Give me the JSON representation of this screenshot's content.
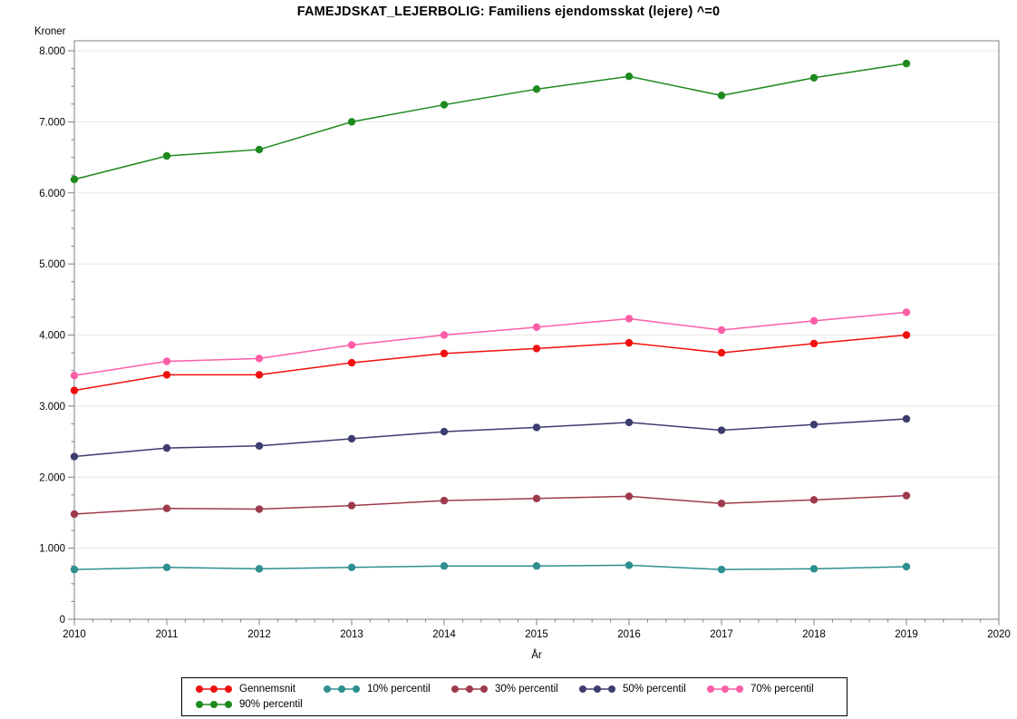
{
  "chart_data": {
    "type": "line",
    "title": "FAMEJDSKAT_LEJERBOLIG: Familiens ejendomsskat (lejere) ^=0",
    "ylabel": "Kroner",
    "xlabel": "År",
    "x": [
      2010,
      2011,
      2012,
      2013,
      2014,
      2015,
      2016,
      2017,
      2018,
      2019
    ],
    "xlim": [
      2010,
      2020
    ],
    "ylim": [
      0,
      8000
    ],
    "grid": "horizontal-only",
    "legend_position": "bottom",
    "ytick_labels": [
      "0",
      "1.000",
      "2.000",
      "3.000",
      "4.000",
      "5.000",
      "6.000",
      "7.000",
      "8.000"
    ],
    "xtick_labels": [
      "2010",
      "2011",
      "2012",
      "2013",
      "2014",
      "2015",
      "2016",
      "2017",
      "2018",
      "2019",
      "2020"
    ],
    "y_minor_tick_interval": 250,
    "x_minor_tick_interval": 0.2,
    "series": [
      {
        "name": "Gennemsnit",
        "color": "#f00f0f",
        "values": [
          3220,
          3440,
          3440,
          3610,
          3740,
          3810,
          3890,
          3750,
          3880,
          4000
        ]
      },
      {
        "name": "10% percentil",
        "color": "#2e8f8f",
        "values": [
          700,
          730,
          710,
          730,
          750,
          750,
          760,
          700,
          710,
          740
        ]
      },
      {
        "name": "30% percentil",
        "color": "#9e3a4c",
        "values": [
          1480,
          1560,
          1550,
          1600,
          1670,
          1700,
          1730,
          1630,
          1680,
          1740
        ]
      },
      {
        "name": "50% percentil",
        "color": "#3c3c6f",
        "values": [
          2290,
          2410,
          2440,
          2540,
          2640,
          2700,
          2770,
          2660,
          2740,
          2820
        ]
      },
      {
        "name": "70% percentil",
        "color": "#fb5da7",
        "values": [
          3430,
          3630,
          3670,
          3860,
          4000,
          4110,
          4230,
          4070,
          4200,
          4320
        ]
      },
      {
        "name": "90% percentil",
        "color": "#1e8a1e",
        "values": [
          6190,
          6520,
          6610,
          7000,
          7240,
          7460,
          7640,
          7370,
          7620,
          7820
        ]
      }
    ],
    "colors": {
      "gridline": "#e8e8e8",
      "axis": "#7f7f7f",
      "text": "#000000"
    }
  }
}
